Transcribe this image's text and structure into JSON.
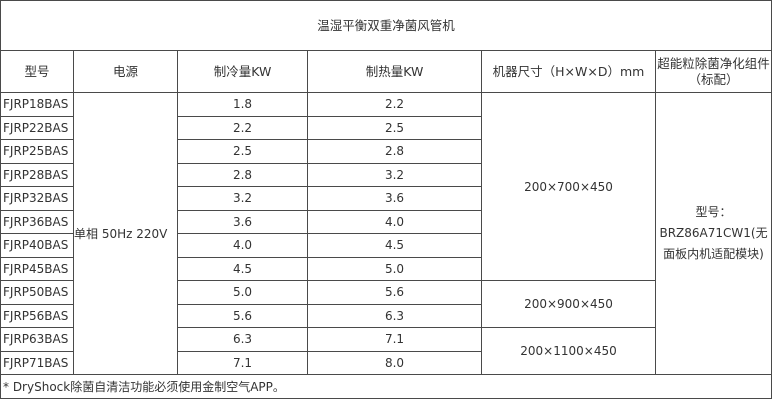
{
  "table": {
    "title": "温湿平衡双重净菌风管机",
    "headers": {
      "model": "型号",
      "power": "电源",
      "cooling": "制冷量KW",
      "heating": "制热量KW",
      "size": "机器尺寸（H×W×D）mm",
      "filter": "超能粒除菌净化组件（标配）"
    },
    "power_value": "单相 50Hz 220V",
    "sizes": [
      "200×700×450",
      "200×900×450",
      "200×1100×450"
    ],
    "filter_value": "型号：BRZ86A71CW1(无面板内机适配模块)",
    "rows": [
      {
        "model": "FJRP18BAS",
        "cooling": "1.8",
        "heating": "2.2"
      },
      {
        "model": "FJRP22BAS",
        "cooling": "2.2",
        "heating": "2.5"
      },
      {
        "model": "FJRP25BAS",
        "cooling": "2.5",
        "heating": "2.8"
      },
      {
        "model": "FJRP28BAS",
        "cooling": "2.8",
        "heating": "3.2"
      },
      {
        "model": "FJRP32BAS",
        "cooling": "3.2",
        "heating": "3.6"
      },
      {
        "model": "FJRP36BAS",
        "cooling": "3.6",
        "heating": "4.0"
      },
      {
        "model": "FJRP40BAS",
        "cooling": "4.0",
        "heating": "4.5"
      },
      {
        "model": "FJRP45BAS",
        "cooling": "4.5",
        "heating": "5.0"
      },
      {
        "model": "FJRP50BAS",
        "cooling": "5.0",
        "heating": "5.6"
      },
      {
        "model": "FJRP56BAS",
        "cooling": "5.6",
        "heating": "6.3"
      },
      {
        "model": "FJRP63BAS",
        "cooling": "6.3",
        "heating": "7.1"
      },
      {
        "model": "FJRP71BAS",
        "cooling": "7.1",
        "heating": "8.0"
      }
    ],
    "note": "* DryShock除菌自清洁功能必须使用金制空气APP。"
  }
}
